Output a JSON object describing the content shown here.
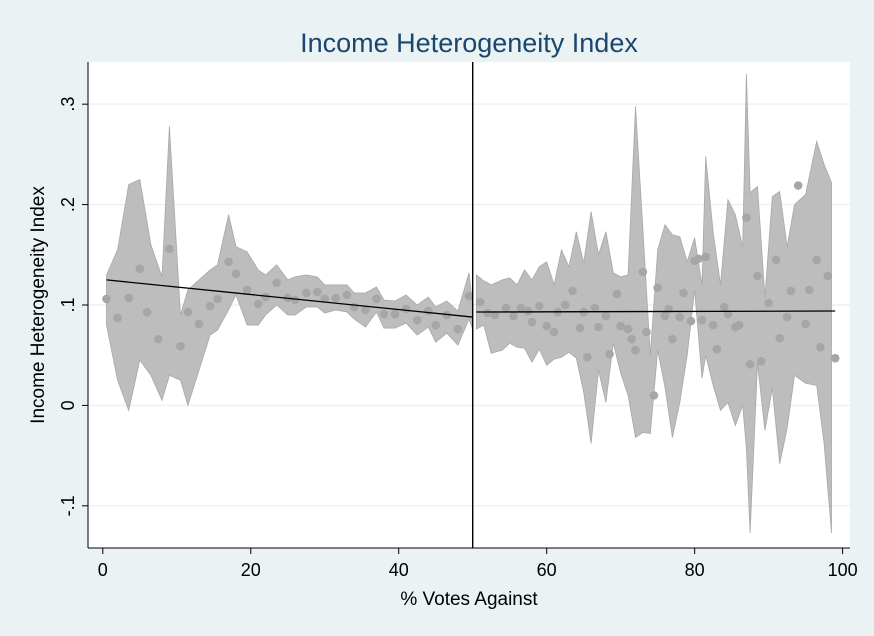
{
  "chart_data": {
    "type": "scatter",
    "title": "Income Heterogeneity Index",
    "xlabel": "% Votes Against",
    "ylabel": "Income Heterogeneity Index",
    "xlim": [
      -2,
      101
    ],
    "ylim": [
      -0.142,
      0.342
    ],
    "x_ticks": [
      {
        "value": 0,
        "label": "0"
      },
      {
        "value": 20,
        "label": "20"
      },
      {
        "value": 40,
        "label": "40"
      },
      {
        "value": 60,
        "label": "60"
      },
      {
        "value": 80,
        "label": "80"
      },
      {
        "value": 100,
        "label": "100"
      }
    ],
    "y_ticks": [
      {
        "value": -0.1,
        "label": "-.1"
      },
      {
        "value": 0,
        "label": "0"
      },
      {
        "value": 0.1,
        "label": ".1"
      },
      {
        "value": 0.2,
        "label": ".2"
      },
      {
        "value": 0.3,
        "label": ".3"
      }
    ],
    "grid": true,
    "cutoff": 50,
    "colors": {
      "background": "#eaf2f3",
      "plot_area": "#ffffff",
      "band": "#bdbdbd",
      "band_edge": "#a8a8a8",
      "points": "#a6a6a6",
      "fit_line": "#000000",
      "title": "#1a476f"
    },
    "points": [
      [
        0.5,
        0.106
      ],
      [
        2,
        0.087
      ],
      [
        3.5,
        0.107
      ],
      [
        5,
        0.136
      ],
      [
        6,
        0.093
      ],
      [
        7.5,
        0.066
      ],
      [
        9,
        0.156
      ],
      [
        10.5,
        0.059
      ],
      [
        11.5,
        0.093
      ],
      [
        13,
        0.081
      ],
      [
        14.5,
        0.099
      ],
      [
        15.5,
        0.106
      ],
      [
        17,
        0.143
      ],
      [
        18,
        0.131
      ],
      [
        19.5,
        0.115
      ],
      [
        21,
        0.101
      ],
      [
        22,
        0.108
      ],
      [
        23.5,
        0.122
      ],
      [
        25,
        0.107
      ],
      [
        26,
        0.105
      ],
      [
        27.5,
        0.112
      ],
      [
        29,
        0.113
      ],
      [
        30,
        0.106
      ],
      [
        31.5,
        0.107
      ],
      [
        33,
        0.11
      ],
      [
        34,
        0.098
      ],
      [
        35.5,
        0.095
      ],
      [
        37,
        0.106
      ],
      [
        38,
        0.091
      ],
      [
        39.5,
        0.091
      ],
      [
        41,
        0.096
      ],
      [
        42.5,
        0.085
      ],
      [
        44,
        0.094
      ],
      [
        45,
        0.08
      ],
      [
        46.5,
        0.09
      ],
      [
        48,
        0.076
      ],
      [
        49.5,
        0.109
      ],
      [
        51,
        0.103
      ],
      [
        52,
        0.092
      ],
      [
        53,
        0.09
      ],
      [
        54.5,
        0.097
      ],
      [
        55.5,
        0.089
      ],
      [
        56.5,
        0.097
      ],
      [
        57.5,
        0.094
      ],
      [
        58,
        0.083
      ],
      [
        59,
        0.099
      ],
      [
        60,
        0.079
      ],
      [
        61,
        0.073
      ],
      [
        61.5,
        0.093
      ],
      [
        62.5,
        0.1
      ],
      [
        63.5,
        0.114
      ],
      [
        64.5,
        0.077
      ],
      [
        65,
        0.093
      ],
      [
        65.5,
        0.048
      ],
      [
        66.5,
        0.097
      ],
      [
        67,
        0.078
      ],
      [
        68,
        0.089
      ],
      [
        68.5,
        0.051
      ],
      [
        69.5,
        0.111
      ],
      [
        70,
        0.079
      ],
      [
        71,
        0.076
      ],
      [
        71.5,
        0.066
      ],
      [
        72,
        0.055
      ],
      [
        73,
        0.133
      ],
      [
        73.5,
        0.073
      ],
      [
        74.5,
        0.01
      ],
      [
        75,
        0.117
      ],
      [
        76,
        0.089
      ],
      [
        76.5,
        0.096
      ],
      [
        77,
        0.066
      ],
      [
        78,
        0.088
      ],
      [
        78.5,
        0.112
      ],
      [
        79.5,
        0.084
      ],
      [
        80,
        0.144
      ],
      [
        80.5,
        0.146
      ],
      [
        81,
        0.085
      ],
      [
        81.5,
        0.148
      ],
      [
        82.5,
        0.08
      ],
      [
        83,
        0.056
      ],
      [
        84,
        0.098
      ],
      [
        84.5,
        0.091
      ],
      [
        85.5,
        0.078
      ],
      [
        86,
        0.08
      ],
      [
        87,
        0.187
      ],
      [
        87.5,
        0.041
      ],
      [
        88.5,
        0.129
      ],
      [
        89,
        0.044
      ],
      [
        90,
        0.102
      ],
      [
        91,
        0.145
      ],
      [
        91.5,
        0.067
      ],
      [
        92.5,
        0.088
      ],
      [
        93,
        0.114
      ],
      [
        94,
        0.219
      ],
      [
        95,
        0.081
      ],
      [
        95.5,
        0.115
      ],
      [
        96.5,
        0.145
      ],
      [
        97,
        0.058
      ],
      [
        98,
        0.129
      ],
      [
        99,
        0.047
      ]
    ],
    "band_left": [
      [
        0.5,
        0.13,
        0.08
      ],
      [
        2,
        0.155,
        0.025
      ],
      [
        3.5,
        0.22,
        -0.005
      ],
      [
        5,
        0.225,
        0.045
      ],
      [
        6.5,
        0.16,
        0.03
      ],
      [
        8,
        0.128,
        0.005
      ],
      [
        9,
        0.278,
        0.03
      ],
      [
        10.5,
        0.09,
        0.025
      ],
      [
        11.5,
        0.115,
        0.0
      ],
      [
        13,
        0.125,
        0.035
      ],
      [
        14.5,
        0.135,
        0.07
      ],
      [
        15.5,
        0.14,
        0.075
      ],
      [
        17,
        0.19,
        0.095
      ],
      [
        18,
        0.158,
        0.11
      ],
      [
        19.5,
        0.153,
        0.08
      ],
      [
        21,
        0.135,
        0.08
      ],
      [
        22,
        0.13,
        0.09
      ],
      [
        23.5,
        0.14,
        0.1
      ],
      [
        25,
        0.125,
        0.09
      ],
      [
        26,
        0.128,
        0.09
      ],
      [
        27.5,
        0.13,
        0.098
      ],
      [
        29,
        0.128,
        0.098
      ],
      [
        30,
        0.12,
        0.092
      ],
      [
        31.5,
        0.12,
        0.095
      ],
      [
        33,
        0.12,
        0.093
      ],
      [
        34,
        0.112,
        0.086
      ],
      [
        35.5,
        0.112,
        0.078
      ],
      [
        37,
        0.118,
        0.093
      ],
      [
        38,
        0.105,
        0.077
      ],
      [
        39.5,
        0.104,
        0.077
      ],
      [
        41,
        0.11,
        0.082
      ],
      [
        42.5,
        0.1,
        0.07
      ],
      [
        44,
        0.108,
        0.078
      ],
      [
        45,
        0.098,
        0.063
      ],
      [
        46.5,
        0.104,
        0.072
      ],
      [
        48,
        0.094,
        0.06
      ],
      [
        49.5,
        0.132,
        0.086
      ],
      [
        50,
        0.1,
        0.076
      ]
    ],
    "band_right": [
      [
        50.5,
        0.13,
        0.076
      ],
      [
        51.5,
        0.124,
        0.08
      ],
      [
        52.5,
        0.12,
        0.052
      ],
      [
        54,
        0.125,
        0.055
      ],
      [
        55,
        0.127,
        0.062
      ],
      [
        56,
        0.12,
        0.058
      ],
      [
        57,
        0.135,
        0.057
      ],
      [
        58,
        0.125,
        0.043
      ],
      [
        59,
        0.138,
        0.056
      ],
      [
        60,
        0.143,
        0.04
      ],
      [
        61,
        0.12,
        0.046
      ],
      [
        62,
        0.155,
        0.048
      ],
      [
        63,
        0.138,
        0.053
      ],
      [
        64,
        0.173,
        0.047
      ],
      [
        65,
        0.142,
        0.013
      ],
      [
        66,
        0.193,
        -0.038
      ],
      [
        67,
        0.15,
        0.035
      ],
      [
        68,
        0.173,
        0.003
      ],
      [
        69,
        0.132,
        0.062
      ],
      [
        70,
        0.128,
        0.032
      ],
      [
        71,
        0.13,
        0.01
      ],
      [
        72,
        0.298,
        -0.032
      ],
      [
        73,
        0.175,
        -0.027
      ],
      [
        74,
        0.05,
        -0.028
      ],
      [
        75,
        0.155,
        0.055
      ],
      [
        76,
        0.18,
        0.018
      ],
      [
        77,
        0.17,
        -0.032
      ],
      [
        78,
        0.168,
        0.003
      ],
      [
        79,
        0.143,
        0.05
      ],
      [
        80,
        0.167,
        0.115
      ],
      [
        81,
        0.12,
        0.027
      ],
      [
        81.5,
        0.248,
        0.05
      ],
      [
        82.5,
        0.173,
        0.02
      ],
      [
        83.5,
        0.12,
        -0.005
      ],
      [
        84.5,
        0.205,
        0.003
      ],
      [
        85.5,
        0.19,
        -0.02
      ],
      [
        86.5,
        0.158,
        0.0
      ],
      [
        87,
        0.33,
        -0.043
      ],
      [
        87.5,
        0.212,
        -0.127
      ],
      [
        88.5,
        0.218,
        0.042
      ],
      [
        89.5,
        0.108,
        -0.025
      ],
      [
        90.5,
        0.208,
        0.017
      ],
      [
        91.5,
        0.213,
        -0.058
      ],
      [
        92.5,
        0.158,
        -0.023
      ],
      [
        93.5,
        0.2,
        0.03
      ],
      [
        95,
        0.21,
        0.022
      ],
      [
        96.5,
        0.263,
        0.02
      ],
      [
        97.5,
        0.24,
        -0.038
      ],
      [
        98.5,
        0.222,
        -0.127
      ]
    ],
    "fit_left": [
      [
        0.5,
        0.125
      ],
      [
        50,
        0.088
      ]
    ],
    "fit_right": [
      [
        50.5,
        0.093
      ],
      [
        99,
        0.094
      ]
    ]
  }
}
